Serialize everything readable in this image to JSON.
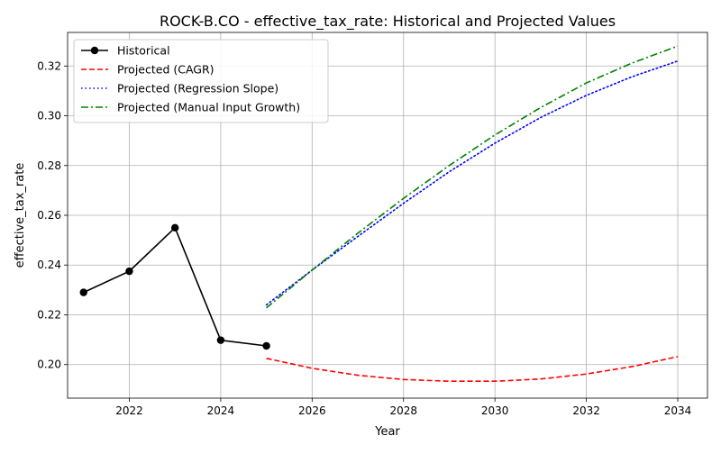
{
  "chart_data": {
    "type": "line",
    "title": "ROCK-B.CO - effective_tax_rate: Historical and Projected Values",
    "xlabel": "Year",
    "ylabel": "effective_tax_rate",
    "xlim": [
      2020.65,
      2034.65
    ],
    "ylim": [
      0.1865,
      0.3335
    ],
    "x_ticks": [
      2022,
      2024,
      2026,
      2028,
      2030,
      2032,
      2034
    ],
    "y_ticks": [
      0.2,
      0.22,
      0.24,
      0.26,
      0.28,
      0.3,
      0.32
    ],
    "grid": true,
    "legend_position": "top-left",
    "series": [
      {
        "name": "Historical",
        "color": "#000000",
        "style": "solid",
        "marker": "circle",
        "x": [
          2021,
          2022,
          2023,
          2024,
          2025
        ],
        "y": [
          0.229,
          0.2375,
          0.255,
          0.2098,
          0.2075
        ]
      },
      {
        "name": "Projected (CAGR)",
        "color": "#ff0000",
        "style": "dashed",
        "marker": "none",
        "x": [
          2025,
          2026,
          2027,
          2028,
          2029,
          2030,
          2031,
          2032,
          2033,
          2034
        ],
        "y": [
          0.2025,
          0.1985,
          0.1957,
          0.194,
          0.1933,
          0.1933,
          0.1942,
          0.1962,
          0.1992,
          0.2032
        ]
      },
      {
        "name": "Projected (Regression Slope)",
        "color": "#0000ff",
        "style": "dotted",
        "marker": "none",
        "x": [
          2025,
          2026,
          2027,
          2028,
          2029,
          2030,
          2031,
          2032,
          2033,
          2034
        ],
        "y": [
          0.224,
          0.238,
          0.2515,
          0.2648,
          0.2775,
          0.289,
          0.2993,
          0.3082,
          0.3157,
          0.322
        ]
      },
      {
        "name": "Projected (Manual Input Growth)",
        "color": "#008000",
        "style": "dashdot",
        "marker": "none",
        "x": [
          2025,
          2026,
          2027,
          2028,
          2029,
          2030,
          2031,
          2032,
          2033,
          2034
        ],
        "y": [
          0.2228,
          0.238,
          0.2528,
          0.2668,
          0.28,
          0.2923,
          0.3033,
          0.3132,
          0.3212,
          0.328
        ]
      }
    ]
  }
}
